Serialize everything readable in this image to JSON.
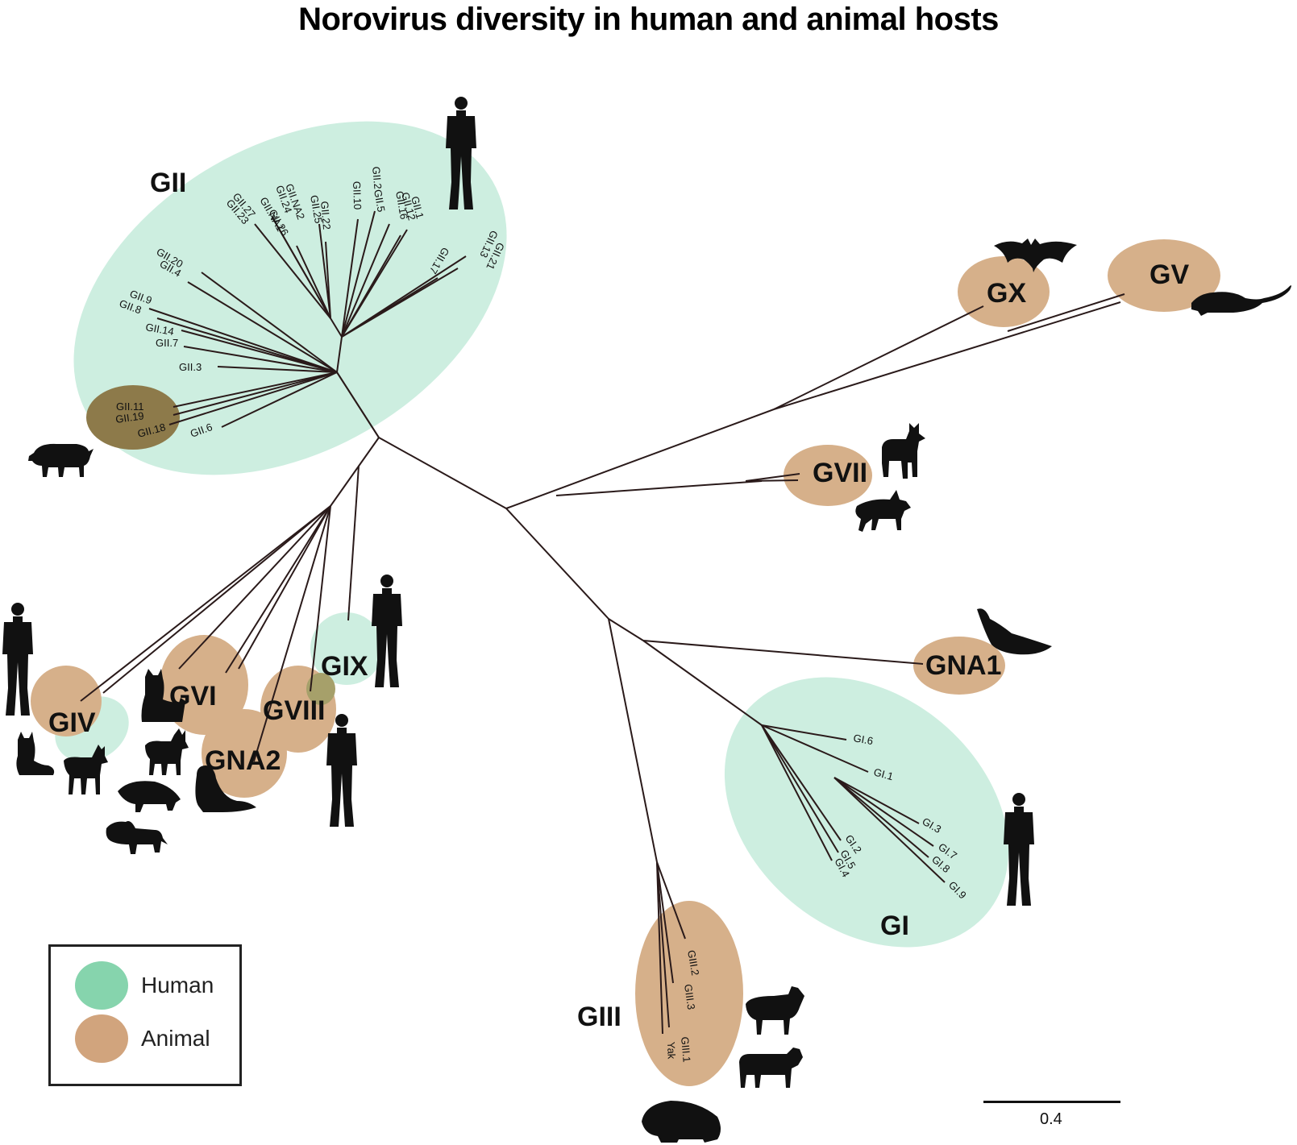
{
  "title": "Norovirus diversity in human and animal hosts",
  "colors": {
    "human": "#cdeee0",
    "animal": "#d6b08a",
    "branch": "#2a1a1a"
  },
  "legend": {
    "human_label": "Human",
    "animal_label": "Animal",
    "human_color": "#86d4ad",
    "animal_color": "#d1a47d"
  },
  "scale": {
    "label": "0.4"
  },
  "groups": {
    "gii": "GII",
    "gx": "GX",
    "gv": "GV",
    "gvii": "GVII",
    "gna1": "GNA1",
    "gi": "GI",
    "giii": "GIII",
    "giv": "GIV",
    "gvi": "GVI",
    "gna2": "GNA2",
    "gviii": "GVIII",
    "gix": "GIX"
  },
  "gii_tips": {
    "t20": "GII.20",
    "t4": "GII.4",
    "t9": "GII.9",
    "t8": "GII.8",
    "t14": "GII.14",
    "t7": "GII.7",
    "t3": "GII.3",
    "t11": "GII.11",
    "t19": "GII.19",
    "t18": "GII.18",
    "t6": "GII.6",
    "t27": "GII.27",
    "t23": "GII.23",
    "tna1": "GII.NA1",
    "t26": "GII.26",
    "t24": "GII.24",
    "tna2": "GII.NA2",
    "t25": "GII.25",
    "t22": "GII.22",
    "t10": "GII.10",
    "t2": "GII.2",
    "t5": "GII.5",
    "t16": "GII.16",
    "t12": "GII.12",
    "t1": "GII.1",
    "t17": "GII.17",
    "t13": "GII.13",
    "t21": "GII.21"
  },
  "gi_tips": {
    "t6": "GI.6",
    "t1": "GI.1",
    "t3": "GI.3",
    "t7": "GI.7",
    "t8": "GI.8",
    "t9": "GI.9",
    "t2": "GI.2",
    "t5": "GI.5",
    "t4": "GI.4"
  },
  "giii_tips": {
    "t2": "GIII.2",
    "t3": "GIII.3",
    "t1": "GIII.1",
    "yak": "Yak"
  },
  "icons": [
    "human-icon",
    "pig-icon",
    "bat-icon",
    "mouse-icon",
    "dog-icon",
    "fox-icon",
    "dolphin-icon",
    "cat-icon",
    "seal-icon",
    "badger-icon",
    "lion-icon",
    "sheep-icon",
    "cow-icon",
    "muskox-icon"
  ]
}
